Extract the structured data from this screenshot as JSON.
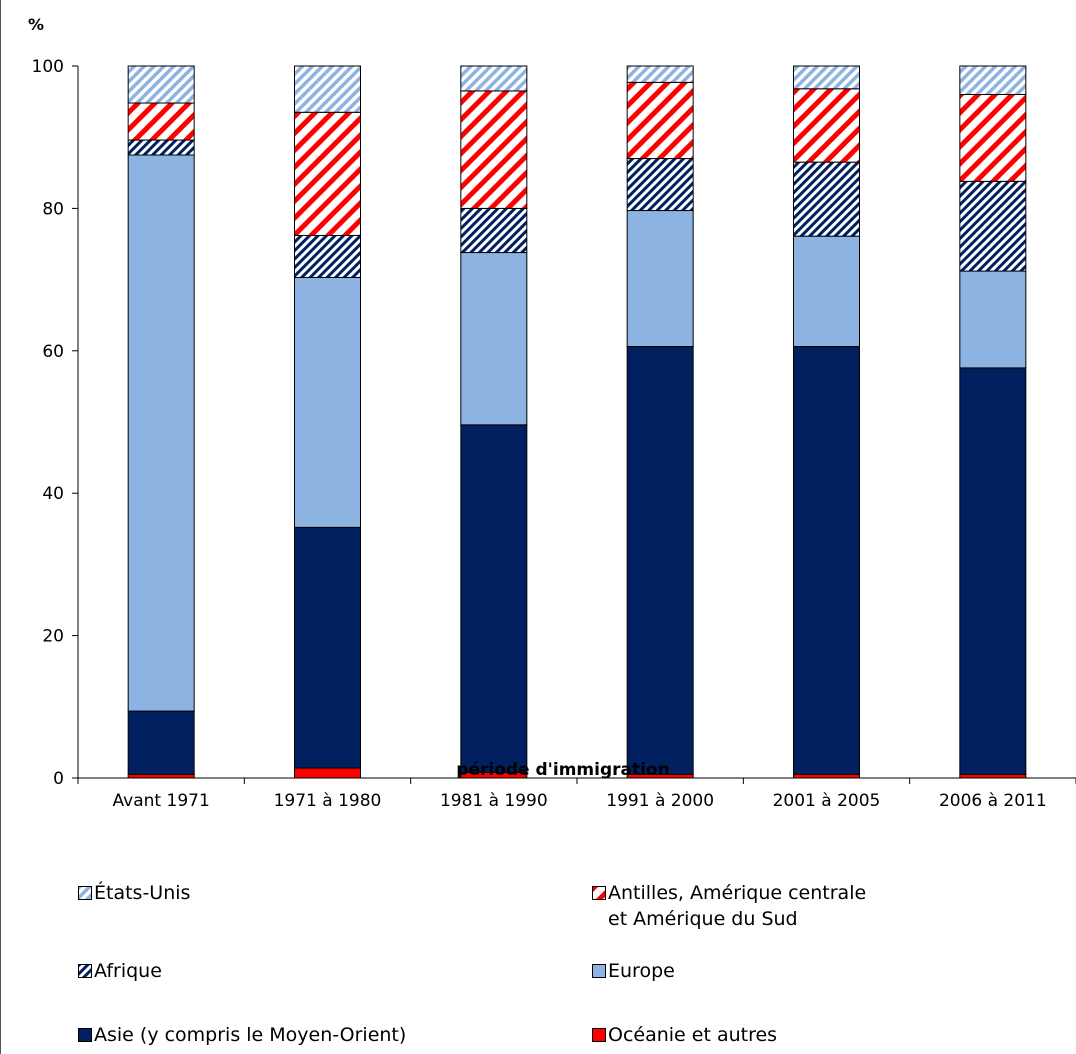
{
  "chart_data": {
    "type": "bar",
    "stacked": true,
    "unit_label": "%",
    "xlabel": "période d'immigration",
    "ylabel": "",
    "ylim": [
      0,
      100
    ],
    "yticks": [
      0,
      20,
      40,
      60,
      80,
      100
    ],
    "categories": [
      "Avant 1971",
      "1971 à 1980",
      "1981 à 1990",
      "1991 à 2000",
      "2001 à 2005",
      "2006 à 2011"
    ],
    "series": [
      {
        "name": "Océanie et autres",
        "color": "#ff0000",
        "pattern": "solid",
        "values": [
          0.5,
          1.4,
          0.8,
          0.5,
          0.5,
          0.5
        ]
      },
      {
        "name": "Asie (y compris le Moyen-Orient)",
        "color": "#002060",
        "pattern": "solid",
        "values": [
          8.9,
          33.8,
          48.8,
          60.1,
          60.1,
          57.1
        ]
      },
      {
        "name": "Europe",
        "color": "#8db3e2",
        "pattern": "solid",
        "values": [
          78.1,
          35.1,
          24.2,
          19.1,
          15.5,
          13.6
        ]
      },
      {
        "name": "Afrique",
        "color": "#002060",
        "pattern": "diag-narrow",
        "values": [
          2.1,
          5.9,
          6.2,
          7.3,
          10.4,
          12.6
        ]
      },
      {
        "name": "Antilles, Amérique centrale\net Amérique du Sud",
        "color": "#ff0000",
        "pattern": "diag-wide",
        "values": [
          5.2,
          17.3,
          16.5,
          10.7,
          10.3,
          12.2
        ]
      },
      {
        "name": "États-Unis",
        "color": "#8db3e2",
        "pattern": "diag-light",
        "values": [
          5.2,
          6.5,
          3.5,
          2.3,
          3.2,
          4.0
        ]
      }
    ],
    "legend": {
      "placement": "bottom",
      "order": [
        "États-Unis",
        "Antilles, Amérique centrale\net Amérique du Sud",
        "Afrique",
        "Europe",
        "Asie (y compris le Moyen-Orient)",
        "Océanie et autres"
      ]
    },
    "grid": false
  }
}
